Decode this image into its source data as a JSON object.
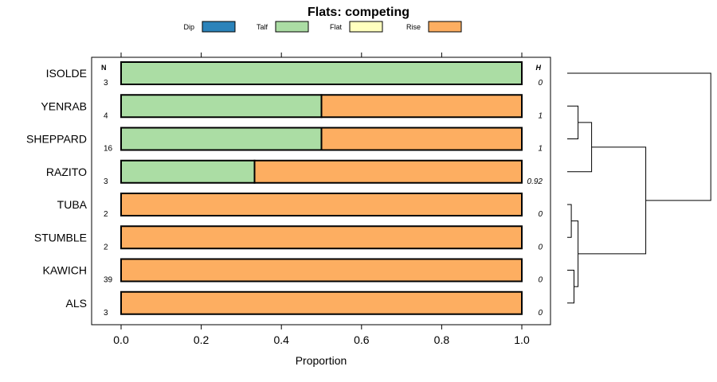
{
  "chart_data": {
    "type": "bar",
    "orientation": "horizontal-stacked",
    "title": "Flats: competing",
    "xlabel": "Proportion",
    "ylabel": "",
    "xlim": [
      0,
      1
    ],
    "x_ticks": [
      "0.0",
      "0.2",
      "0.4",
      "0.6",
      "0.8",
      "1.0"
    ],
    "x_tick_values": [
      0,
      0.2,
      0.4,
      0.6,
      0.8,
      1.0
    ],
    "legend": [
      {
        "name": "Dip",
        "color": "#2b83ba"
      },
      {
        "name": "Talf",
        "color": "#abdda4"
      },
      {
        "name": "Flat",
        "color": "#ffffbf"
      },
      {
        "name": "Rise",
        "color": "#fdae61"
      }
    ],
    "n_header": "N",
    "h_header": "H",
    "categories": [
      "ISOLDE",
      "YENRAB",
      "SHEPPARD",
      "RAZITO",
      "TUBA",
      "STUMBLE",
      "KAWICH",
      "ALS"
    ],
    "n_values": [
      "3",
      "4",
      "16",
      "3",
      "2",
      "2",
      "39",
      "3"
    ],
    "h_values": [
      "0",
      "1",
      "1",
      "0.92",
      "0",
      "0",
      "0",
      "0"
    ],
    "series": [
      {
        "name": "Dip",
        "values": [
          0,
          0,
          0,
          0,
          0,
          0,
          0,
          0
        ]
      },
      {
        "name": "Talf",
        "values": [
          1.0,
          0.5,
          0.5,
          0.333,
          0,
          0,
          0,
          0
        ]
      },
      {
        "name": "Flat",
        "values": [
          0,
          0,
          0,
          0,
          0,
          0,
          0,
          0
        ]
      },
      {
        "name": "Rise",
        "values": [
          0,
          0.5,
          0.5,
          0.667,
          1.0,
          1.0,
          1.0,
          1.0
        ]
      }
    ],
    "dendrogram": {
      "leaf_order": [
        "ISOLDE",
        "YENRAB",
        "SHEPPARD",
        "RAZITO",
        "TUBA",
        "STUMBLE",
        "KAWICH",
        "ALS"
      ],
      "merges": [
        {
          "children": [
            "YENRAB",
            "SHEPPARD"
          ],
          "height": 0.04
        },
        {
          "children": [
            "TUBA",
            "STUMBLE"
          ],
          "height": 0.015
        },
        {
          "children": [
            "KAWICH",
            "ALS"
          ],
          "height": 0.025
        },
        {
          "children": [
            "YENRAB+SHEPPARD",
            "RAZITO"
          ],
          "height": 0.09
        },
        {
          "children": [
            "TUBA+STUMBLE",
            "KAWICH+ALS"
          ],
          "height": 0.04
        },
        {
          "children": [
            "YENRAB+SHEPPARD+RAZITO",
            "TUBA+STUMBLE+KAWICH+ALS"
          ],
          "height": 0.29
        },
        {
          "children": [
            "ISOLDE",
            "rest"
          ],
          "height": 0.53
        }
      ]
    }
  }
}
